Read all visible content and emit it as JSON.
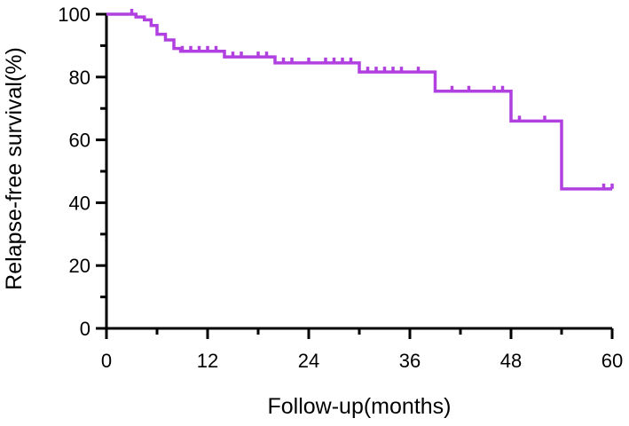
{
  "chart_data": {
    "type": "line",
    "subtype": "kaplan-meier-step",
    "title": "",
    "xlabel": "Follow-up(months)",
    "ylabel": "Relapse-free survival(%)",
    "xlim": [
      0,
      60
    ],
    "ylim": [
      0,
      100
    ],
    "xticks": [
      0,
      12,
      24,
      36,
      48,
      60
    ],
    "yticks": [
      0,
      20,
      40,
      60,
      80,
      100
    ],
    "xtick_labels": [
      "0",
      "12",
      "24",
      "36",
      "48",
      "60"
    ],
    "ytick_labels": [
      "0",
      "20",
      "40",
      "60",
      "80",
      "100"
    ],
    "y_minor_step": 10,
    "x_minor_step": 6,
    "grid": false,
    "legend": "none",
    "line_color": "#b140e0",
    "series": [
      {
        "steps": [
          [
            0,
            100
          ],
          [
            3.5,
            99.1
          ],
          [
            4.5,
            98.2
          ],
          [
            5.3,
            96.4
          ],
          [
            6.0,
            93.6
          ],
          [
            7.0,
            91.8
          ],
          [
            8.0,
            89.1
          ],
          [
            8.8,
            88.2
          ],
          [
            14.0,
            86.4
          ],
          [
            20.0,
            84.5
          ],
          [
            30.0,
            81.6
          ],
          [
            39.0,
            75.5
          ],
          [
            48.0,
            66.0
          ],
          [
            54.0,
            44.4
          ],
          [
            60.0,
            44.4
          ]
        ],
        "censor_x": [
          3,
          9,
          10,
          11,
          12,
          13,
          15,
          16,
          18,
          19,
          21,
          22,
          24,
          26,
          27,
          28,
          29,
          31,
          32,
          33,
          34,
          35,
          37,
          41,
          43,
          46,
          47,
          49,
          52,
          59,
          60
        ]
      }
    ]
  }
}
